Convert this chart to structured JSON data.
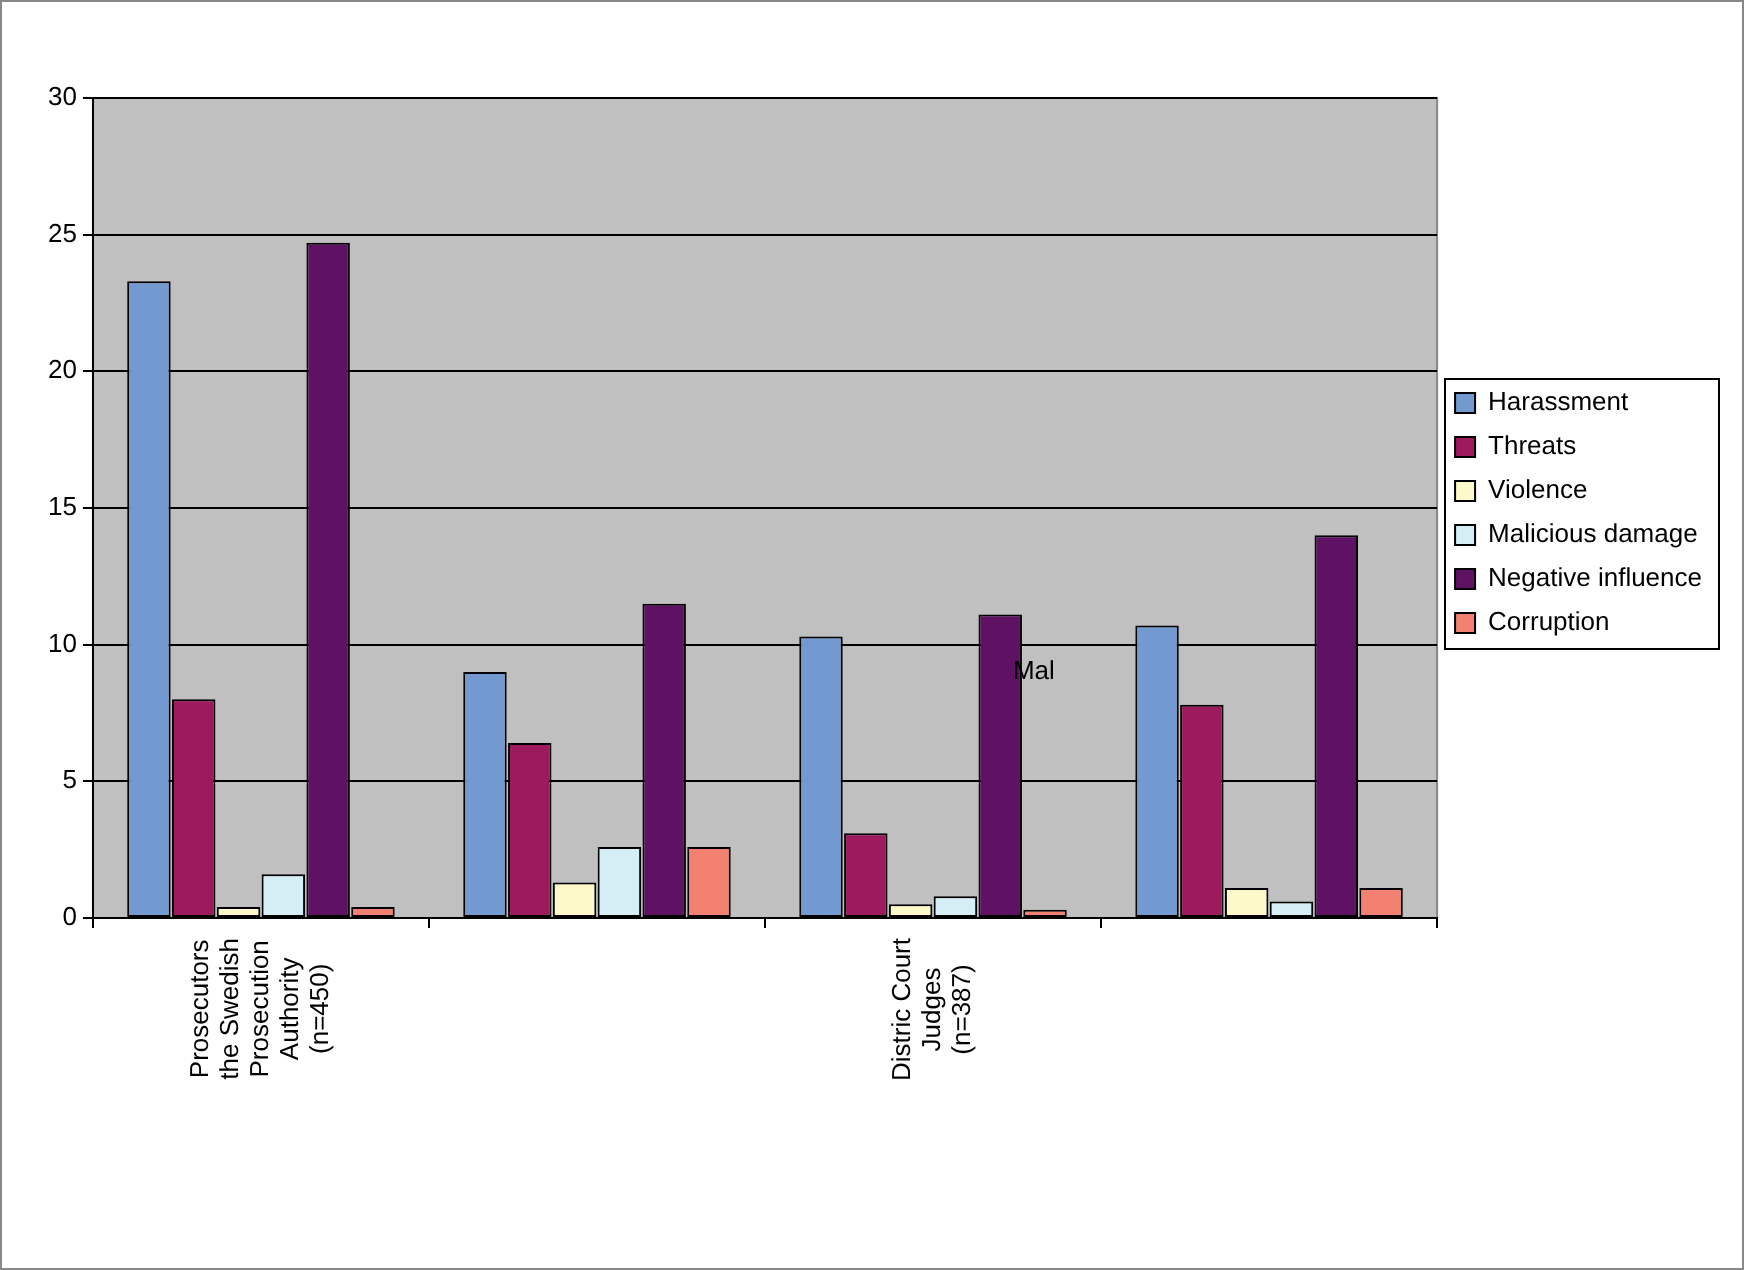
{
  "chart_data": {
    "type": "bar",
    "categories": [
      "Prosecutors the Swedish Prosecution Authority (n=450)",
      null,
      "Distric Court Judges (n=387)",
      null
    ],
    "series": [
      {
        "name": "Harassment",
        "color": "#7399d1",
        "values": [
          23.3,
          9.0,
          10.3,
          10.7
        ]
      },
      {
        "name": "Threats",
        "color": "#9e1a5e",
        "values": [
          8.0,
          6.4,
          3.1,
          7.8
        ]
      },
      {
        "name": "Violence",
        "color": "#fdf9c9",
        "values": [
          0.4,
          1.3,
          0.5,
          1.1
        ]
      },
      {
        "name": "Malicious damage",
        "color": "#d5eef5",
        "values": [
          1.6,
          2.6,
          0.8,
          0.6
        ]
      },
      {
        "name": "Negative influence",
        "color": "#5f1263",
        "values": [
          24.7,
          11.5,
          11.1,
          14.0
        ]
      },
      {
        "name": "Corruption",
        "color": "#f28172",
        "values": [
          0.4,
          2.6,
          0.3,
          1.1
        ]
      }
    ],
    "ylim": [
      0,
      30
    ],
    "yticks": [
      0,
      5,
      10,
      15,
      20,
      25,
      30
    ],
    "grid": "y",
    "legend": "right",
    "annotations": [
      "Mal"
    ]
  }
}
